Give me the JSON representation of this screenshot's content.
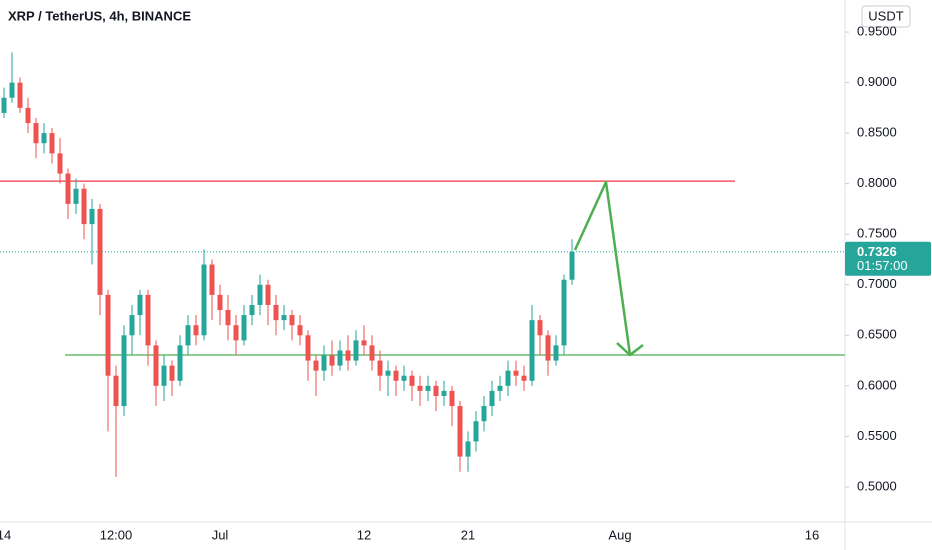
{
  "chart_data": {
    "type": "candlestick",
    "title": "XRP / TetherUS, 4h, BINANCE",
    "currency": "USDT",
    "up_color": "#26a69a",
    "down_color": "#ef5350",
    "ylim": [
      0.4653,
      0.9817
    ],
    "yticks": [
      {
        "value": 0.5,
        "label": "0.5000"
      },
      {
        "value": 0.55,
        "label": "0.5500"
      },
      {
        "value": 0.6,
        "label": "0.6000"
      },
      {
        "value": 0.65,
        "label": "0.6500"
      },
      {
        "value": 0.7,
        "label": "0.7000"
      },
      {
        "value": 0.75,
        "label": "0.7500"
      },
      {
        "value": 0.8,
        "label": "0.8000"
      },
      {
        "value": 0.85,
        "label": "0.8500"
      },
      {
        "value": 0.9,
        "label": "0.9000"
      },
      {
        "value": 0.95,
        "label": "0.9500"
      }
    ],
    "grid": false,
    "categories": [
      "14",
      null,
      null,
      null,
      null,
      null,
      null,
      null,
      null,
      null,
      null,
      null,
      null,
      null,
      "12:00",
      null,
      null,
      null,
      null,
      null,
      null,
      null,
      null,
      null,
      null,
      null,
      null,
      "Jul",
      null,
      null,
      null,
      null,
      null,
      null,
      null,
      null,
      null,
      null,
      null,
      null,
      null,
      null,
      null,
      null,
      null,
      "12",
      null,
      null,
      null,
      null,
      null,
      null,
      null,
      null,
      null,
      null,
      null,
      null,
      "21",
      null,
      null,
      null,
      null,
      null,
      null,
      null,
      null,
      null,
      null,
      null,
      null,
      null,
      null,
      null,
      null,
      null,
      null,
      "Aug",
      null,
      null,
      null,
      null,
      null,
      null,
      null,
      null,
      null,
      null,
      null,
      null,
      null,
      null,
      null,
      null,
      null,
      null,
      null,
      null,
      null,
      null,
      null,
      "16",
      null,
      null,
      null,
      null
    ],
    "open": [
      0.87,
      0.885,
      0.9,
      0.875,
      0.86,
      0.84,
      0.85,
      0.83,
      0.81,
      0.78,
      0.795,
      0.76,
      0.775,
      0.69,
      0.61,
      0.58,
      0.65,
      0.67,
      0.69,
      0.64,
      0.6,
      0.62,
      0.605,
      0.64,
      0.66,
      0.65,
      0.72,
      0.69,
      0.675,
      0.66,
      0.645,
      0.67,
      0.68,
      0.7,
      0.68,
      0.665,
      0.67,
      0.66,
      0.65,
      0.625,
      0.615,
      0.63,
      0.62,
      0.635,
      0.625,
      0.645,
      0.64,
      0.625,
      0.61,
      0.615,
      0.605,
      0.61,
      0.6,
      0.595,
      0.6,
      0.59,
      0.595,
      0.58,
      0.53,
      0.545,
      0.565,
      0.58,
      0.595,
      0.6,
      0.615,
      0.61,
      0.605,
      0.665,
      0.65,
      0.625,
      0.64,
      0.705,
      null,
      null,
      null,
      null,
      null,
      null,
      null,
      null,
      null,
      null,
      null,
      null,
      null,
      null,
      null,
      null,
      null,
      null,
      null,
      null,
      null,
      null,
      null,
      null,
      null,
      null,
      null,
      null,
      null,
      null,
      null,
      null,
      null,
      null
    ],
    "high": [
      0.895,
      0.93,
      0.905,
      0.885,
      0.865,
      0.86,
      0.855,
      0.845,
      0.815,
      0.805,
      0.8,
      0.785,
      0.78,
      0.695,
      0.62,
      0.66,
      0.68,
      0.695,
      0.695,
      0.645,
      0.63,
      0.625,
      0.65,
      0.67,
      0.67,
      0.735,
      0.725,
      0.7,
      0.69,
      0.67,
      0.68,
      0.69,
      0.71,
      0.705,
      0.69,
      0.68,
      0.675,
      0.67,
      0.655,
      0.63,
      0.64,
      0.645,
      0.645,
      0.65,
      0.655,
      0.66,
      0.65,
      0.635,
      0.625,
      0.62,
      0.62,
      0.615,
      0.61,
      0.61,
      0.605,
      0.605,
      0.6,
      0.585,
      0.555,
      0.575,
      0.59,
      0.605,
      0.61,
      0.625,
      0.625,
      0.62,
      0.68,
      0.67,
      0.655,
      0.65,
      0.71,
      0.745,
      null,
      null,
      null,
      null,
      null,
      null,
      null,
      null,
      null,
      null,
      null,
      null,
      null,
      null,
      null,
      null,
      null,
      null,
      null,
      null,
      null,
      null,
      null,
      null,
      null,
      null,
      null,
      null,
      null,
      null,
      null,
      null,
      null,
      null
    ],
    "low": [
      0.865,
      0.88,
      0.87,
      0.85,
      0.825,
      0.83,
      0.82,
      0.8,
      0.765,
      0.77,
      0.745,
      0.72,
      0.67,
      0.555,
      0.51,
      0.57,
      0.63,
      0.65,
      0.62,
      0.58,
      0.585,
      0.59,
      0.6,
      0.63,
      0.64,
      0.645,
      0.665,
      0.66,
      0.645,
      0.63,
      0.64,
      0.66,
      0.67,
      0.66,
      0.65,
      0.655,
      0.645,
      0.64,
      0.605,
      0.59,
      0.605,
      0.61,
      0.615,
      0.615,
      0.62,
      0.63,
      0.615,
      0.595,
      0.59,
      0.59,
      0.595,
      0.585,
      0.58,
      0.585,
      0.575,
      0.58,
      0.56,
      0.515,
      0.515,
      0.535,
      0.555,
      0.57,
      0.585,
      0.59,
      0.6,
      0.595,
      0.6,
      0.63,
      0.61,
      0.62,
      0.63,
      0.7,
      null,
      null,
      null,
      null,
      null,
      null,
      null,
      null,
      null,
      null,
      null,
      null,
      null,
      null,
      null,
      null,
      null,
      null,
      null,
      null,
      null,
      null,
      null,
      null,
      null,
      null,
      null,
      null,
      null,
      null,
      null,
      null,
      null,
      null
    ],
    "close": [
      0.885,
      0.9,
      0.875,
      0.86,
      0.84,
      0.85,
      0.83,
      0.81,
      0.78,
      0.795,
      0.76,
      0.775,
      0.69,
      0.61,
      0.58,
      0.65,
      0.67,
      0.69,
      0.64,
      0.6,
      0.62,
      0.605,
      0.64,
      0.66,
      0.65,
      0.72,
      0.69,
      0.675,
      0.66,
      0.645,
      0.67,
      0.68,
      0.7,
      0.68,
      0.665,
      0.67,
      0.66,
      0.65,
      0.625,
      0.615,
      0.63,
      0.62,
      0.635,
      0.625,
      0.645,
      0.64,
      0.625,
      0.61,
      0.615,
      0.605,
      0.61,
      0.6,
      0.595,
      0.6,
      0.59,
      0.595,
      0.58,
      0.53,
      0.545,
      0.565,
      0.58,
      0.595,
      0.6,
      0.615,
      0.61,
      0.605,
      0.665,
      0.65,
      0.625,
      0.64,
      0.705,
      0.7326,
      null,
      null,
      null,
      null,
      null,
      null,
      null,
      null,
      null,
      null,
      null,
      null,
      null,
      null,
      null,
      null,
      null,
      null,
      null,
      null,
      null,
      null,
      null,
      null,
      null,
      null,
      null,
      null,
      null,
      null,
      null,
      null,
      null,
      null
    ],
    "last_price": 0.7326,
    "countdown": "01:57:00",
    "horizontal_lines": [
      {
        "value": 0.8025,
        "color": "#f23645"
      },
      {
        "value": 0.6305,
        "color": "#4caf50"
      }
    ]
  }
}
